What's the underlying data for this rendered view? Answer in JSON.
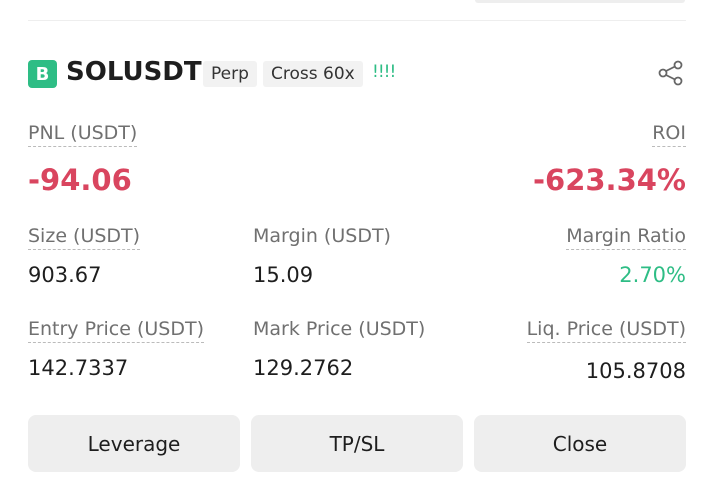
{
  "header": {
    "badge": "B",
    "symbol": "SOLUSDT",
    "tags": [
      "Perp",
      "Cross 60x"
    ],
    "signal": "!!!!"
  },
  "fields": [
    {
      "label": "PNL (USDT)",
      "value": "-94.06"
    },
    {
      "label": "ROI",
      "value": "-623.34%"
    },
    {
      "label": "Size (USDT)",
      "value": "903.67"
    },
    {
      "label": "Margin (USDT)",
      "value": "15.09"
    },
    {
      "label": "Margin Ratio",
      "value": "2.70%"
    },
    {
      "label": "Entry Price (USDT)",
      "value": "142.7337"
    },
    {
      "label": "Mark Price (USDT)",
      "value": "129.2762"
    },
    {
      "label": "Liq. Price (USDT)",
      "value": "105.8708"
    }
  ],
  "buttons": [
    "Leverage",
    "TP/SL",
    "Close"
  ]
}
